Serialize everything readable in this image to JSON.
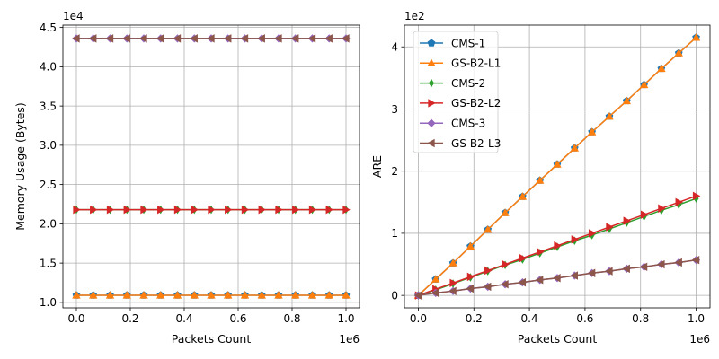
{
  "chart_data": [
    {
      "type": "line",
      "xlabel": "Packets Count",
      "ylabel": "Memory Usage (Bytes)",
      "x_offset_label": "1e6",
      "y_offset_label": "1e4",
      "x_scale": 1000000,
      "y_scale": 10000,
      "xlim": [
        -50000,
        1050000
      ],
      "ylim": [
        9300,
        45300
      ],
      "xticks": [
        0,
        200000,
        400000,
        600000,
        800000,
        1000000
      ],
      "xtick_labels": [
        "0.0",
        "0.2",
        "0.4",
        "0.6",
        "0.8",
        "1.0"
      ],
      "yticks": [
        10000,
        15000,
        20000,
        25000,
        30000,
        35000,
        40000,
        45000
      ],
      "ytick_labels": [
        "1.0",
        "1.5",
        "2.0",
        "2.5",
        "3.0",
        "3.5",
        "4.0",
        "4.5"
      ],
      "grid": true,
      "legend": "",
      "x": [
        0,
        62500,
        125000,
        187500,
        250000,
        312500,
        375000,
        437500,
        500000,
        562500,
        625000,
        687500,
        750000,
        812500,
        875000,
        937500,
        1000000
      ],
      "series": [
        {
          "name": "CMS-1",
          "color": "#1f77b4",
          "marker": "pentagon",
          "values": [
            10900,
            10900,
            10900,
            10900,
            10900,
            10900,
            10900,
            10900,
            10900,
            10900,
            10900,
            10900,
            10900,
            10900,
            10900,
            10900,
            10900
          ]
        },
        {
          "name": "GS-B2-L1",
          "color": "#ff7f0e",
          "marker": "triangle-up",
          "values": [
            10900,
            10900,
            10900,
            10900,
            10900,
            10900,
            10900,
            10900,
            10900,
            10900,
            10900,
            10900,
            10900,
            10900,
            10900,
            10900,
            10900
          ]
        },
        {
          "name": "CMS-2",
          "color": "#2ca02c",
          "marker": "thin-diamond",
          "values": [
            21800,
            21800,
            21800,
            21800,
            21800,
            21800,
            21800,
            21800,
            21800,
            21800,
            21800,
            21800,
            21800,
            21800,
            21800,
            21800,
            21800
          ]
        },
        {
          "name": "GS-B2-L2",
          "color": "#d62728",
          "marker": "triangle-right",
          "values": [
            21800,
            21800,
            21800,
            21800,
            21800,
            21800,
            21800,
            21800,
            21800,
            21800,
            21800,
            21800,
            21800,
            21800,
            21800,
            21800,
            21800
          ]
        },
        {
          "name": "CMS-3",
          "color": "#9467bd",
          "marker": "diamond",
          "values": [
            43600,
            43600,
            43600,
            43600,
            43600,
            43600,
            43600,
            43600,
            43600,
            43600,
            43600,
            43600,
            43600,
            43600,
            43600,
            43600,
            43600
          ]
        },
        {
          "name": "GS-B2-L3",
          "color": "#8c564b",
          "marker": "triangle-left",
          "values": [
            43600,
            43600,
            43600,
            43600,
            43600,
            43600,
            43600,
            43600,
            43600,
            43600,
            43600,
            43600,
            43600,
            43600,
            43600,
            43600,
            43600
          ]
        }
      ]
    },
    {
      "type": "line",
      "xlabel": "Packets Count",
      "ylabel": "ARE",
      "x_offset_label": "1e6",
      "y_offset_label": "1e2",
      "x_scale": 1000000,
      "y_scale": 100,
      "xlim": [
        -50000,
        1050000
      ],
      "ylim": [
        -20,
        435
      ],
      "xticks": [
        0,
        200000,
        400000,
        600000,
        800000,
        1000000
      ],
      "xtick_labels": [
        "0.0",
        "0.2",
        "0.4",
        "0.6",
        "0.8",
        "1.0"
      ],
      "yticks": [
        0,
        100,
        200,
        300,
        400
      ],
      "ytick_labels": [
        "0",
        "1",
        "2",
        "3",
        "4"
      ],
      "grid": true,
      "legend": "upper-left",
      "x": [
        0,
        62500,
        125000,
        187500,
        250000,
        312500,
        375000,
        437500,
        500000,
        562500,
        625000,
        687500,
        750000,
        812500,
        875000,
        937500,
        1000000
      ],
      "series": [
        {
          "name": "CMS-1",
          "color": "#1f77b4",
          "marker": "pentagon",
          "values": [
            0,
            26,
            52,
            79,
            106,
            133,
            159,
            185,
            211,
            237,
            263,
            288,
            313,
            339,
            365,
            390,
            415
          ]
        },
        {
          "name": "GS-B2-L1",
          "color": "#ff7f0e",
          "marker": "triangle-up",
          "values": [
            0,
            26,
            52,
            79,
            106,
            133,
            159,
            185,
            211,
            237,
            263,
            288,
            313,
            339,
            365,
            390,
            415
          ]
        },
        {
          "name": "CMS-2",
          "color": "#2ca02c",
          "marker": "thin-diamond",
          "values": [
            0,
            9,
            19,
            29,
            39,
            49,
            58,
            68,
            78,
            88,
            97,
            107,
            117,
            127,
            137,
            146,
            156
          ]
        },
        {
          "name": "GS-B2-L2",
          "color": "#d62728",
          "marker": "triangle-right",
          "values": [
            0,
            10,
            20,
            30,
            40,
            50,
            60,
            70,
            80,
            90,
            100,
            110,
            120,
            130,
            140,
            150,
            160
          ]
        },
        {
          "name": "CMS-3",
          "color": "#9467bd",
          "marker": "diamond",
          "values": [
            0,
            4,
            7,
            11,
            14,
            18,
            21,
            25,
            28,
            32,
            36,
            39,
            43,
            46,
            50,
            53,
            57
          ]
        },
        {
          "name": "GS-B2-L3",
          "color": "#8c564b",
          "marker": "triangle-left",
          "values": [
            0,
            4,
            7,
            11,
            14,
            18,
            21,
            25,
            28,
            32,
            36,
            39,
            43,
            46,
            50,
            53,
            57
          ]
        }
      ]
    }
  ]
}
